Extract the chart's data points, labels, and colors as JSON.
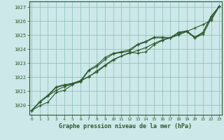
{
  "title": "Graphe pression niveau de la mer (hPa)",
  "bg_color": "#cce8e8",
  "grid_color": "#88bbbb",
  "line_color": "#2d5a2d",
  "marker": "+",
  "xlim": [
    -0.3,
    23.3
  ],
  "ylim": [
    1019.3,
    1027.4
  ],
  "xticks": [
    0,
    1,
    2,
    3,
    4,
    5,
    6,
    7,
    8,
    9,
    10,
    11,
    12,
    13,
    14,
    15,
    16,
    17,
    18,
    19,
    20,
    21,
    22,
    23
  ],
  "yticks": [
    1020,
    1021,
    1022,
    1023,
    1024,
    1025,
    1026,
    1027
  ],
  "series": [
    [
      1019.6,
      1019.95,
      1020.2,
      1020.9,
      1021.05,
      1021.45,
      1021.75,
      1022.0,
      1022.45,
      1022.85,
      1023.25,
      1023.5,
      1023.7,
      1023.9,
      1024.1,
      1024.4,
      1024.65,
      1024.8,
      1025.0,
      1025.25,
      1025.5,
      1025.75,
      1026.05,
      1027.05
    ],
    [
      1019.6,
      1020.2,
      1020.65,
      1021.05,
      1021.3,
      1021.5,
      1021.7,
      1022.05,
      1022.35,
      1022.8,
      1023.2,
      1023.5,
      1023.75,
      1023.7,
      1023.8,
      1024.3,
      1024.6,
      1024.8,
      1025.05,
      1025.25,
      1024.8,
      1025.05,
      1026.15,
      1027.05
    ],
    [
      1019.6,
      1020.2,
      1020.65,
      1021.25,
      1021.4,
      1021.5,
      1021.65,
      1022.45,
      1022.75,
      1023.25,
      1023.65,
      1023.75,
      1023.85,
      1024.3,
      1024.5,
      1024.8,
      1024.8,
      1024.8,
      1025.15,
      1025.25,
      1024.8,
      1025.15,
      1026.3,
      1027.05
    ],
    [
      1019.6,
      1020.25,
      1020.7,
      1021.3,
      1021.45,
      1021.55,
      1021.75,
      1022.5,
      1022.85,
      1023.4,
      1023.7,
      1023.8,
      1023.95,
      1024.35,
      1024.55,
      1024.85,
      1024.85,
      1024.8,
      1025.2,
      1025.3,
      1024.85,
      1025.2,
      1026.35,
      1027.05
    ]
  ]
}
